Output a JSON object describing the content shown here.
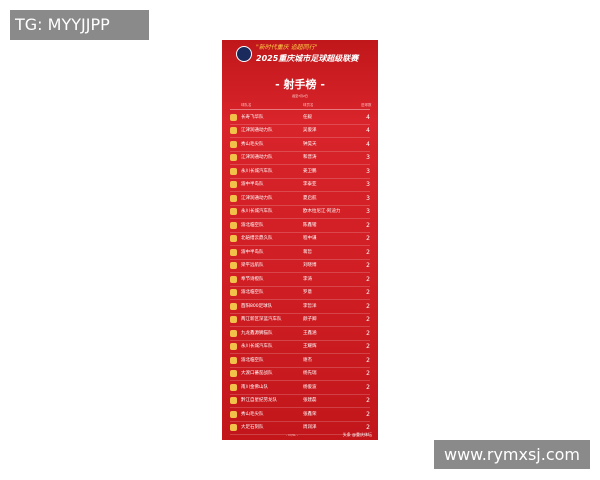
{
  "watermarks": {
    "top": "TG: MYYJJPP",
    "bottom": "www.rymxsj.com"
  },
  "poster": {
    "slogan": "\"新时代重庆 追超同行\"",
    "title": "2025重庆城市足球超级联赛",
    "board_title": "- 射手榜 -",
    "subtitle": "截至7月2日",
    "columns": [
      "球队名",
      "球员名",
      "进球数"
    ],
    "rows": [
      {
        "team": "长寿飞华队",
        "player": "任毅",
        "goals": "4"
      },
      {
        "team": "江津润通动力队",
        "player": "吴俊泽",
        "goals": "4"
      },
      {
        "team": "秀山毛尖队",
        "player": "钟昊天",
        "goals": "4"
      },
      {
        "team": "江津润通动力队",
        "player": "和晋涛",
        "goals": "3"
      },
      {
        "team": "永川长城汽车队",
        "player": "姜卫鹏",
        "goals": "3"
      },
      {
        "team": "渝中半岛队",
        "player": "李泰亚",
        "goals": "3"
      },
      {
        "team": "江津润通动力队",
        "player": "夏启航",
        "goals": "3"
      },
      {
        "team": "永川长城汽车队",
        "player": "欧木拉尼江·阿迪力",
        "goals": "3"
      },
      {
        "team": "渝北临空队",
        "player": "陈鑫锴",
        "goals": "2"
      },
      {
        "team": "北碚缙云鼎久队",
        "player": "程中谦",
        "goals": "2"
      },
      {
        "team": "渝中半岛队",
        "player": "蒋哲",
        "goals": "2"
      },
      {
        "team": "梁平远航队",
        "player": "刘晓博",
        "goals": "2"
      },
      {
        "team": "奉节诗橙队",
        "player": "李涛",
        "goals": "2"
      },
      {
        "team": "渝北临空队",
        "player": "罗意",
        "goals": "2"
      },
      {
        "team": "酉阳800足球队",
        "player": "李哲洋",
        "goals": "2"
      },
      {
        "team": "两江新区深蓝汽车队",
        "player": "颜子卿",
        "goals": "2"
      },
      {
        "team": "九龙鑫源狮猫队",
        "player": "王鑫涵",
        "goals": "2"
      },
      {
        "team": "永川长城汽车队",
        "player": "王耀辉",
        "goals": "2"
      },
      {
        "team": "渝北临空队",
        "player": "谢杰",
        "goals": "2"
      },
      {
        "team": "大渡口蕃茄战队",
        "player": "杨先瑞",
        "goals": "2"
      },
      {
        "team": "南川金佛山队",
        "player": "杨俊波",
        "goals": "2"
      },
      {
        "team": "黔江自星纪劳龙队",
        "player": "张建磊",
        "goals": "2"
      },
      {
        "team": "秀山毛尖队",
        "player": "张鑫荣",
        "goals": "2"
      },
      {
        "team": "大足石刻队",
        "player": "周润泽",
        "goals": "2"
      }
    ],
    "footer": "- CQSL -",
    "credit": "头条 @重庆体坛"
  }
}
